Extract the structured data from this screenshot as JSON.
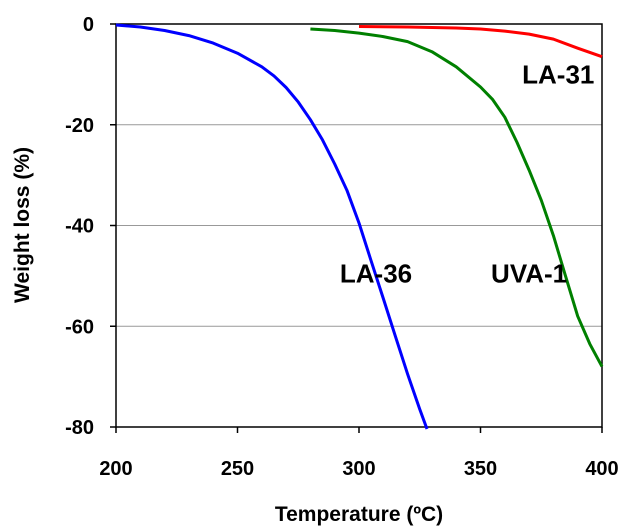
{
  "chart_data": {
    "type": "line",
    "title": "",
    "xlabel": "Temperature (ºC)",
    "ylabel": "Weight loss (%)",
    "xlim": [
      200,
      400
    ],
    "ylim": [
      -80,
      0
    ],
    "x_ticks": [
      200,
      250,
      300,
      350,
      400
    ],
    "y_ticks": [
      0,
      -20,
      -40,
      -60,
      -80
    ],
    "grid": "horizontal",
    "legend": "none (series labeled inline)",
    "series": [
      {
        "name": "LA-36",
        "color": "#0000ff",
        "label_at": [
          307,
          -49.5
        ],
        "points": [
          [
            200,
            -0.2
          ],
          [
            210,
            -0.6
          ],
          [
            220,
            -1.3
          ],
          [
            230,
            -2.3
          ],
          [
            240,
            -3.8
          ],
          [
            250,
            -5.8
          ],
          [
            260,
            -8.5
          ],
          [
            265,
            -10.3
          ],
          [
            270,
            -12.6
          ],
          [
            275,
            -15.5
          ],
          [
            280,
            -19.0
          ],
          [
            285,
            -23.0
          ],
          [
            290,
            -27.8
          ],
          [
            295,
            -33.0
          ],
          [
            300,
            -39.5
          ],
          [
            305,
            -47.0
          ],
          [
            310,
            -54.5
          ],
          [
            315,
            -62.0
          ],
          [
            320,
            -69.5
          ],
          [
            325,
            -76.5
          ],
          [
            328,
            -81.0
          ]
        ]
      },
      {
        "name": "UVA-1",
        "color": "#008000",
        "label_at": [
          370,
          -49.5
        ],
        "points": [
          [
            280,
            -1.0
          ],
          [
            290,
            -1.3
          ],
          [
            300,
            -1.8
          ],
          [
            310,
            -2.5
          ],
          [
            320,
            -3.5
          ],
          [
            330,
            -5.5
          ],
          [
            340,
            -8.5
          ],
          [
            350,
            -12.5
          ],
          [
            355,
            -15.0
          ],
          [
            360,
            -18.5
          ],
          [
            365,
            -23.5
          ],
          [
            370,
            -29.0
          ],
          [
            375,
            -35.0
          ],
          [
            380,
            -42.0
          ],
          [
            385,
            -50.0
          ],
          [
            390,
            -58.0
          ],
          [
            395,
            -63.5
          ],
          [
            400,
            -68.0
          ]
        ]
      },
      {
        "name": "LA-31",
        "color": "#ff0000",
        "label_at": [
          382,
          -10
        ],
        "points": [
          [
            300,
            -0.5
          ],
          [
            320,
            -0.6
          ],
          [
            340,
            -0.8
          ],
          [
            350,
            -1.0
          ],
          [
            360,
            -1.4
          ],
          [
            370,
            -2.0
          ],
          [
            380,
            -3.0
          ],
          [
            390,
            -4.8
          ],
          [
            400,
            -6.5
          ]
        ]
      }
    ]
  }
}
